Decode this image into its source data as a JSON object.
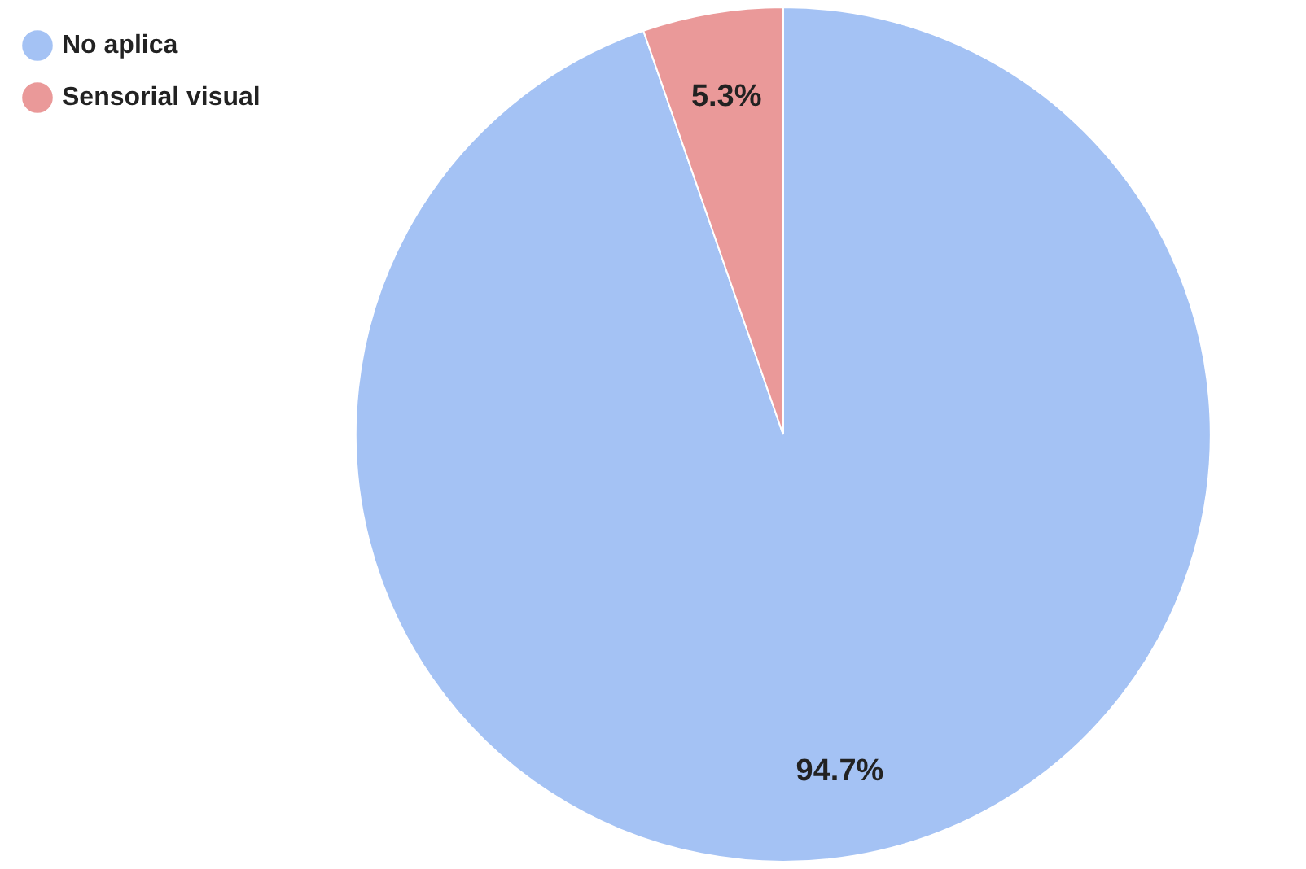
{
  "chart_data": {
    "type": "pie",
    "categories": [
      "No aplica",
      "Sensorial visual"
    ],
    "values": [
      94.7,
      5.3
    ],
    "colors": [
      "#a4c2f4",
      "#ea9999"
    ],
    "value_labels": [
      "94.7%",
      "5.3%"
    ],
    "legend": "top left"
  }
}
